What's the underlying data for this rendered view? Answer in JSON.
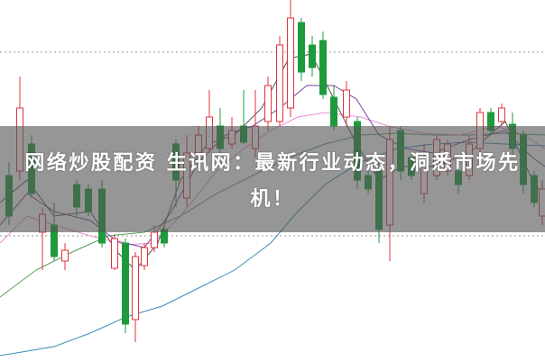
{
  "banner": {
    "title": "网络炒股配资 生讯网：最新行业动态，洞悉市场先机！"
  }
}
